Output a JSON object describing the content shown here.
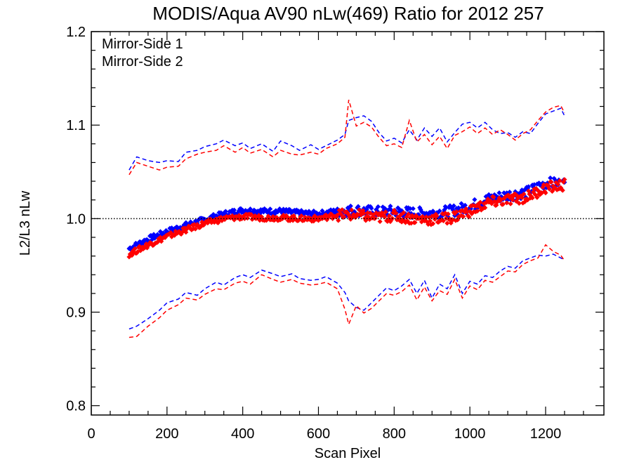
{
  "chart_data": {
    "type": "scatter",
    "title": "MODIS/Aqua AV90 nLw(469) Ratio for 2012 257",
    "xlabel": "Scan Pixel",
    "ylabel": "L2/L3 nLw",
    "xlim": [
      0,
      1354
    ],
    "ylim": [
      0.79,
      1.2
    ],
    "x_ticks": [
      0,
      200,
      400,
      600,
      800,
      1000,
      1200
    ],
    "x_tick_labels": [
      "0",
      "200",
      "400",
      "600",
      "800",
      "1000",
      "1200"
    ],
    "y_ticks": [
      0.8,
      0.9,
      1.0,
      1.1,
      1.2
    ],
    "y_tick_labels": [
      "0.8",
      "0.9",
      "1.0",
      "1.1",
      "1.2"
    ],
    "reference_line": {
      "y": 1.0,
      "style": "dotted"
    },
    "legend_placement": "top-left",
    "colors": {
      "ms1": "#0000ff",
      "ms2": "#ff0000",
      "axes": "#000000"
    },
    "series": [
      {
        "name": "Mirror-Side 1",
        "color": "#0000ff",
        "mean": {
          "x": [
            100,
            150,
            200,
            250,
            300,
            350,
            400,
            450,
            500,
            550,
            600,
            650,
            700,
            750,
            800,
            850,
            900,
            950,
            1000,
            1050,
            1100,
            1150,
            1200,
            1250
          ],
          "y": [
            0.968,
            0.978,
            0.986,
            0.993,
            0.999,
            1.005,
            1.009,
            1.008,
            1.008,
            1.006,
            1.005,
            1.008,
            1.009,
            1.007,
            1.008,
            1.006,
            1.006,
            1.008,
            1.013,
            1.021,
            1.025,
            1.028,
            1.038,
            1.037
          ]
        },
        "upper": {
          "x": [
            100,
            120,
            150,
            180,
            200,
            230,
            250,
            280,
            300,
            330,
            350,
            380,
            400,
            420,
            450,
            480,
            500,
            530,
            550,
            580,
            600,
            620,
            650,
            670,
            680,
            700,
            720,
            740,
            760,
            780,
            800,
            820,
            840,
            860,
            880,
            900,
            920,
            940,
            960,
            980,
            1000,
            1020,
            1040,
            1060,
            1080,
            1100,
            1120,
            1140,
            1160,
            1180,
            1200,
            1220,
            1240,
            1250
          ],
          "y": [
            1.052,
            1.066,
            1.062,
            1.06,
            1.062,
            1.061,
            1.071,
            1.073,
            1.077,
            1.08,
            1.084,
            1.078,
            1.081,
            1.075,
            1.08,
            1.072,
            1.083,
            1.078,
            1.073,
            1.079,
            1.074,
            1.078,
            1.084,
            1.09,
            1.105,
            1.108,
            1.11,
            1.104,
            1.092,
            1.083,
            1.086,
            1.081,
            1.095,
            1.084,
            1.097,
            1.088,
            1.097,
            1.082,
            1.092,
            1.101,
            1.103,
            1.097,
            1.103,
            1.095,
            1.091,
            1.092,
            1.087,
            1.093,
            1.091,
            1.102,
            1.112,
            1.115,
            1.118,
            1.11
          ]
        },
        "lower": {
          "x": [
            100,
            120,
            150,
            180,
            200,
            230,
            250,
            280,
            300,
            330,
            350,
            380,
            400,
            420,
            450,
            480,
            500,
            530,
            550,
            580,
            600,
            620,
            650,
            670,
            680,
            700,
            720,
            740,
            760,
            780,
            800,
            820,
            840,
            860,
            880,
            900,
            920,
            940,
            960,
            980,
            1000,
            1020,
            1040,
            1060,
            1080,
            1100,
            1120,
            1140,
            1160,
            1180,
            1200,
            1220,
            1240,
            1250
          ],
          "y": [
            0.882,
            0.885,
            0.893,
            0.902,
            0.91,
            0.914,
            0.921,
            0.918,
            0.925,
            0.932,
            0.929,
            0.937,
            0.94,
            0.937,
            0.945,
            0.941,
            0.938,
            0.941,
            0.936,
            0.934,
            0.935,
            0.938,
            0.931,
            0.921,
            0.912,
            0.905,
            0.902,
            0.91,
            0.918,
            0.926,
            0.923,
            0.928,
            0.935,
            0.92,
            0.934,
            0.915,
            0.93,
            0.925,
            0.94,
            0.92,
            0.933,
            0.93,
            0.939,
            0.937,
            0.944,
            0.949,
            0.947,
            0.955,
            0.958,
            0.961,
            0.96,
            0.962,
            0.958,
            0.956
          ]
        }
      },
      {
        "name": "Mirror-Side 2",
        "color": "#ff0000",
        "mean": {
          "x": [
            100,
            150,
            200,
            250,
            300,
            350,
            400,
            450,
            500,
            550,
            600,
            650,
            700,
            750,
            800,
            850,
            900,
            950,
            1000,
            1050,
            1100,
            1150,
            1200,
            1250
          ],
          "y": [
            0.962,
            0.972,
            0.981,
            0.988,
            0.995,
            1.0,
            1.002,
            1.001,
            1.001,
            1.0,
            1.0,
            1.004,
            1.004,
            1.001,
            1.003,
            1.0,
            0.999,
            1.001,
            1.008,
            1.017,
            1.02,
            1.023,
            1.033,
            1.036
          ]
        },
        "upper": {
          "x": [
            100,
            120,
            150,
            180,
            200,
            230,
            250,
            280,
            300,
            330,
            350,
            380,
            400,
            420,
            450,
            480,
            500,
            530,
            550,
            580,
            600,
            620,
            650,
            670,
            680,
            700,
            720,
            740,
            760,
            780,
            800,
            820,
            840,
            860,
            880,
            900,
            920,
            940,
            960,
            980,
            1000,
            1020,
            1040,
            1060,
            1080,
            1100,
            1120,
            1140,
            1160,
            1180,
            1200,
            1220,
            1240,
            1250
          ],
          "y": [
            1.047,
            1.06,
            1.056,
            1.052,
            1.055,
            1.056,
            1.064,
            1.069,
            1.071,
            1.073,
            1.078,
            1.071,
            1.076,
            1.07,
            1.074,
            1.066,
            1.073,
            1.069,
            1.068,
            1.071,
            1.069,
            1.075,
            1.08,
            1.087,
            1.127,
            1.099,
            1.103,
            1.098,
            1.087,
            1.078,
            1.08,
            1.076,
            1.105,
            1.082,
            1.09,
            1.079,
            1.088,
            1.075,
            1.089,
            1.093,
            1.098,
            1.091,
            1.097,
            1.09,
            1.095,
            1.09,
            1.084,
            1.091,
            1.095,
            1.105,
            1.114,
            1.119,
            1.121,
            1.113
          ]
        },
        "lower": {
          "x": [
            100,
            120,
            150,
            180,
            200,
            230,
            250,
            280,
            300,
            330,
            350,
            380,
            400,
            420,
            450,
            480,
            500,
            530,
            550,
            580,
            600,
            620,
            650,
            670,
            680,
            700,
            720,
            740,
            760,
            780,
            800,
            820,
            840,
            860,
            880,
            900,
            920,
            940,
            960,
            980,
            1000,
            1020,
            1040,
            1060,
            1080,
            1100,
            1120,
            1140,
            1160,
            1180,
            1200,
            1220,
            1240,
            1250
          ],
          "y": [
            0.873,
            0.874,
            0.885,
            0.894,
            0.902,
            0.908,
            0.915,
            0.913,
            0.919,
            0.925,
            0.924,
            0.931,
            0.933,
            0.93,
            0.94,
            0.935,
            0.932,
            0.935,
            0.931,
            0.929,
            0.93,
            0.932,
            0.925,
            0.903,
            0.887,
            0.907,
            0.899,
            0.904,
            0.912,
            0.92,
            0.918,
            0.922,
            0.929,
            0.913,
            0.927,
            0.912,
            0.923,
            0.919,
            0.935,
            0.915,
            0.928,
            0.924,
            0.934,
            0.932,
            0.938,
            0.944,
            0.943,
            0.951,
            0.955,
            0.958,
            0.972,
            0.965,
            0.961,
            0.955
          ]
        }
      }
    ]
  }
}
